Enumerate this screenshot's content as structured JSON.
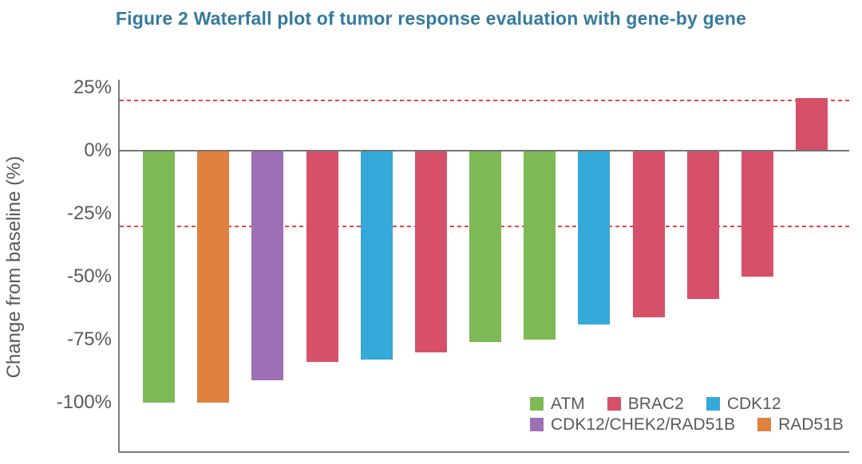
{
  "title": {
    "text": "Figure 2 Waterfall plot of tumor response evaluation with gene-by gene",
    "color": "#337A9D"
  },
  "chart_data": {
    "type": "bar",
    "title": "Figure 2 Waterfall plot of tumor response evaluation with gene-by gene",
    "ylabel": "Change from baseline (%)",
    "xlabel": "",
    "ylim": [
      -112,
      30
    ],
    "yticks": [
      25,
      0,
      -25,
      -50,
      -75,
      -100
    ],
    "ytick_labels": [
      "25%",
      "0%",
      "-25%",
      "-50%",
      "-75%",
      "-100%"
    ],
    "grid": false,
    "legend_position": "bottom-right-inside",
    "reference_lines": [
      {
        "value": 20,
        "style": "dashed",
        "color": "#E64545"
      },
      {
        "value": -30,
        "style": "dashed",
        "color": "#E64545"
      }
    ],
    "bars": [
      {
        "gene": "ATM",
        "value": -100
      },
      {
        "gene": "RAD51B",
        "value": -100
      },
      {
        "gene": "CDK12/CHEK2/RAD51B",
        "value": -91
      },
      {
        "gene": "BRAC2",
        "value": -84
      },
      {
        "gene": "CDK12",
        "value": -83
      },
      {
        "gene": "BRAC2",
        "value": -80
      },
      {
        "gene": "ATM",
        "value": -76
      },
      {
        "gene": "ATM",
        "value": -75
      },
      {
        "gene": "CDK12",
        "value": -69
      },
      {
        "gene": "BRAC2",
        "value": -66
      },
      {
        "gene": "BRAC2",
        "value": -59
      },
      {
        "gene": "BRAC2",
        "value": -50
      },
      {
        "gene": "BRAC2",
        "value": 21
      }
    ],
    "series_colors": {
      "ATM": "#7DB954",
      "BRAC2": "#D75069",
      "CDK12": "#35A9D9",
      "CDK12/CHEK2/RAD51B": "#9D6FB5",
      "RAD51B": "#E0813F"
    },
    "legend_rows": [
      [
        {
          "label": "ATM",
          "color": "#7DB954"
        },
        {
          "label": "BRAC2",
          "color": "#D75069"
        },
        {
          "label": "CDK12",
          "color": "#35A9D9"
        }
      ],
      [
        {
          "label": "CDK12/CHEK2/RAD51B",
          "color": "#9D6FB5"
        },
        {
          "label": "RAD51B",
          "color": "#E0813F"
        }
      ]
    ]
  }
}
